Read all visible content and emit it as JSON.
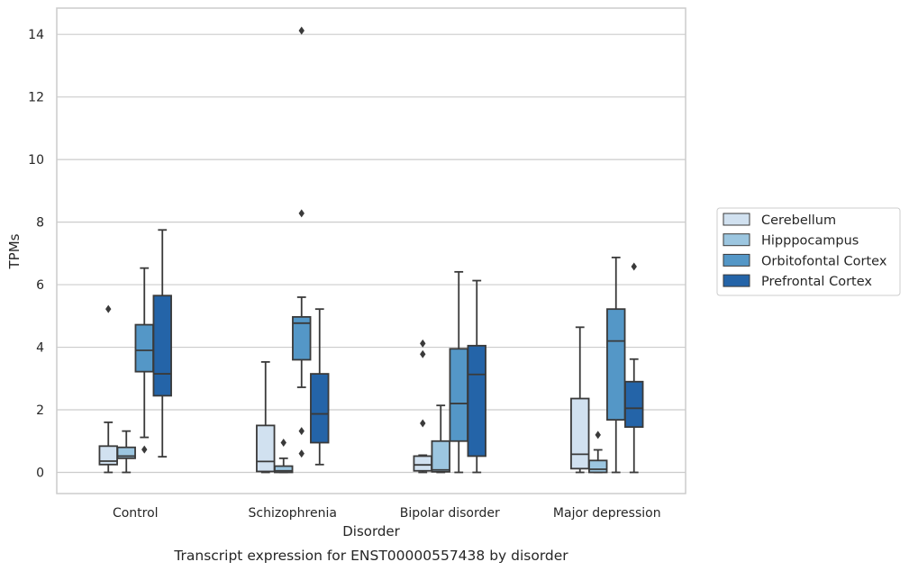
{
  "chart_data": {
    "type": "boxplot",
    "caption": "Transcript expression for ENST00000557438 by disorder",
    "xlabel": "Disorder",
    "ylabel": "TPMs",
    "ylim": [
      -0.7,
      14.8
    ],
    "yticks": [
      0,
      2,
      4,
      6,
      8,
      10,
      12,
      14
    ],
    "ytick_labels": [
      "0",
      "2",
      "4",
      "6",
      "8",
      "10",
      "12",
      "14"
    ],
    "grid": "horizontal",
    "legend_position": "right",
    "categories": [
      "Control",
      "Schizophrenia",
      "Bipolar disorder",
      "Major depression"
    ],
    "series": [
      {
        "name": "Cerebellum",
        "color": "#d1e1f0",
        "boxes": [
          {
            "whislo": 0.0,
            "q1": 0.25,
            "med": 0.36,
            "q3": 0.84,
            "whishi": 1.6,
            "fliers": [
              5.22
            ]
          },
          {
            "whislo": 0.0,
            "q1": 0.03,
            "med": 0.35,
            "q3": 1.5,
            "whishi": 3.53,
            "fliers": []
          },
          {
            "whislo": 0.0,
            "q1": 0.05,
            "med": 0.24,
            "q3": 0.52,
            "whishi": 0.55,
            "fliers": [
              1.57,
              3.78,
              4.12
            ]
          },
          {
            "whislo": 0.0,
            "q1": 0.12,
            "med": 0.58,
            "q3": 2.36,
            "whishi": 4.64,
            "fliers": []
          }
        ]
      },
      {
        "name": "Hipppocampus",
        "color": "#9cc6e0",
        "boxes": [
          {
            "whislo": 0.0,
            "q1": 0.45,
            "med": 0.52,
            "q3": 0.8,
            "whishi": 1.32,
            "fliers": []
          },
          {
            "whislo": 0.0,
            "q1": 0.0,
            "med": 0.05,
            "q3": 0.2,
            "whishi": 0.45,
            "fliers": [
              0.95
            ]
          },
          {
            "whislo": 0.0,
            "q1": 0.02,
            "med": 0.08,
            "q3": 1.0,
            "whishi": 2.14,
            "fliers": []
          },
          {
            "whislo": 0.0,
            "q1": 0.0,
            "med": 0.1,
            "q3": 0.38,
            "whishi": 0.72,
            "fliers": [
              1.2
            ]
          }
        ]
      },
      {
        "name": "Orbitofontal Cortex",
        "color": "#5497c7",
        "boxes": [
          {
            "whislo": 1.12,
            "q1": 3.22,
            "med": 3.9,
            "q3": 4.72,
            "whishi": 6.53,
            "fliers": [
              0.73
            ]
          },
          {
            "whislo": 2.72,
            "q1": 3.6,
            "med": 4.77,
            "q3": 4.97,
            "whishi": 5.6,
            "fliers": [
              0.6,
              1.32,
              8.28,
              14.12
            ]
          },
          {
            "whislo": 0.0,
            "q1": 1.0,
            "med": 2.2,
            "q3": 3.95,
            "whishi": 6.41,
            "fliers": []
          },
          {
            "whislo": 0.0,
            "q1": 1.68,
            "med": 4.2,
            "q3": 5.22,
            "whishi": 6.87,
            "fliers": []
          }
        ]
      },
      {
        "name": "Prefrontal Cortex",
        "color": "#2464a8",
        "boxes": [
          {
            "whislo": 0.5,
            "q1": 2.45,
            "med": 3.15,
            "q3": 5.65,
            "whishi": 7.75,
            "fliers": []
          },
          {
            "whislo": 0.25,
            "q1": 0.95,
            "med": 1.87,
            "q3": 3.15,
            "whishi": 5.22,
            "fliers": []
          },
          {
            "whislo": 0.0,
            "q1": 0.52,
            "med": 3.13,
            "q3": 4.05,
            "whishi": 6.13,
            "fliers": []
          },
          {
            "whislo": 0.0,
            "q1": 1.45,
            "med": 2.05,
            "q3": 2.9,
            "whishi": 3.62,
            "fliers": [
              6.58
            ]
          }
        ]
      }
    ]
  }
}
